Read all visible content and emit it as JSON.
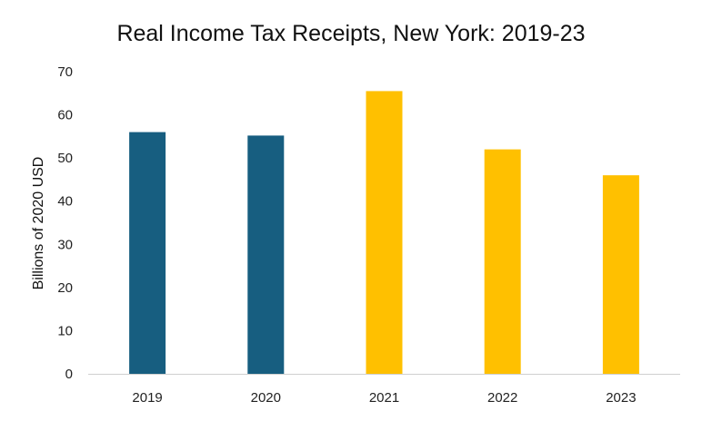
{
  "chart_data": {
    "type": "bar",
    "title": "Real Income Tax Receipts, New York: 2019-23",
    "xlabel": "",
    "ylabel": "Billions of 2020 USD",
    "categories": [
      "2019",
      "2020",
      "2021",
      "2022",
      "2023"
    ],
    "values": [
      56,
      55.2,
      65.5,
      52,
      46
    ],
    "bar_colors": [
      "#175E80",
      "#175E80",
      "#FFC000",
      "#FFC000",
      "#FFC000"
    ],
    "ylim": [
      0,
      70
    ],
    "yticks": [
      "0",
      "10",
      "20",
      "30",
      "40",
      "50",
      "60",
      "70"
    ],
    "grid": false,
    "legend": "none"
  }
}
